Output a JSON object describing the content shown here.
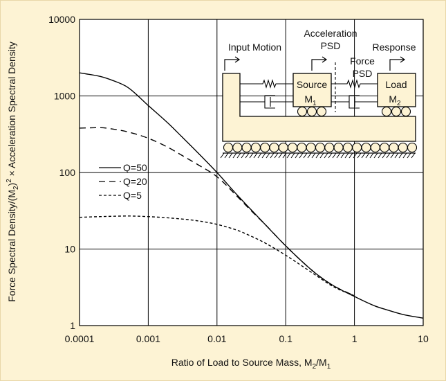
{
  "colors": {
    "background": "#fdf3d4",
    "plot_background": "#ffffff",
    "grid": "#000000",
    "diagram_fill": "#fdf3d4",
    "border": "#000000"
  },
  "chart_data": {
    "type": "line",
    "xlabel": {
      "main": "Ratio of Load to Source Mass, M",
      "sub": "2",
      "tail": "/M",
      "sub2": "1"
    },
    "ylabel": {
      "a": "Force Spectral Density/(M",
      "sub": "2",
      "b": ")",
      "sup": "2",
      "c": " × Acceleration Spectral Density"
    },
    "x_scale": "log",
    "y_scale": "log",
    "xlim": [
      0.0001,
      10
    ],
    "ylim": [
      1,
      10000
    ],
    "grid": true,
    "x_ticks": [
      "0.0001",
      "0.001",
      "0.01",
      "0.1",
      "1",
      "10"
    ],
    "y_ticks": [
      "1",
      "10",
      "100",
      "1000",
      "10000"
    ],
    "legend": {
      "position": "middle-left"
    },
    "series": [
      {
        "name": "Q=50",
        "style": "solid",
        "x": [
          0.0001,
          0.0002,
          0.0003,
          0.0005,
          0.001,
          0.002,
          0.003,
          0.005,
          0.01,
          0.02,
          0.03,
          0.05,
          0.1,
          0.2,
          0.3,
          0.5,
          1,
          2,
          3,
          5,
          10
        ],
        "y": [
          2000,
          1800,
          1600,
          1300,
          750,
          430,
          300,
          190,
          100,
          50,
          34,
          21,
          11,
          6.1,
          4.5,
          3.3,
          2.4,
          1.8,
          1.6,
          1.4,
          1.25
        ]
      },
      {
        "name": "Q=20",
        "style": "dashed",
        "x": [
          0.0001,
          0.0002,
          0.0003,
          0.0005,
          0.001,
          0.002,
          0.003,
          0.005,
          0.01,
          0.02,
          0.03,
          0.05,
          0.1,
          0.2,
          0.3,
          0.5,
          1
        ],
        "y": [
          380,
          385,
          370,
          340,
          280,
          210,
          170,
          130,
          88,
          48,
          33,
          21,
          11,
          6.1,
          4.5,
          3.3,
          2.45
        ]
      },
      {
        "name": "Q=5",
        "style": "dotted",
        "x": [
          0.0001,
          0.0002,
          0.0005,
          0.001,
          0.002,
          0.005,
          0.01,
          0.02,
          0.03,
          0.05,
          0.1,
          0.2,
          0.3,
          0.5,
          1
        ],
        "y": [
          26,
          26.5,
          27,
          26.5,
          25.5,
          23.5,
          21,
          17.5,
          15,
          12,
          8.3,
          5.5,
          4.3,
          3.2,
          2.45
        ]
      }
    ]
  },
  "diagram": {
    "input_motion": "Input Motion",
    "acceleration": "Acceleration",
    "psd1": "PSD",
    "force": "Force",
    "psd2": "PSD",
    "response": "Response",
    "source": "Source",
    "m1_letter": "M",
    "m1_sub": "1",
    "load": "Load",
    "m2_letter": "M",
    "m2_sub": "2"
  }
}
